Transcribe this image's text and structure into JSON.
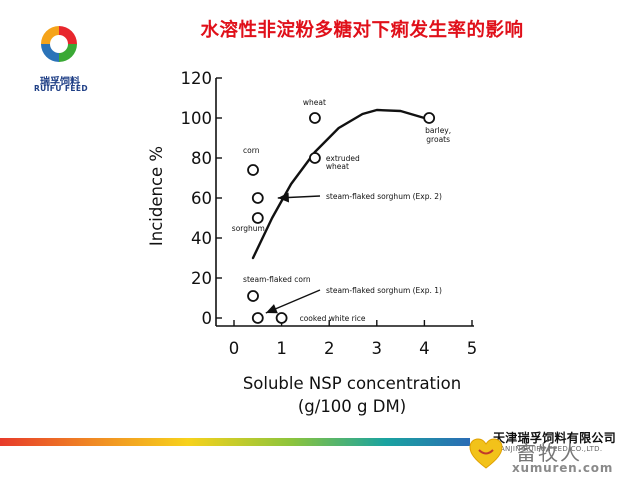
{
  "header": {
    "title": "水溶性非淀粉多糖对下痢发生率的影响",
    "brand_cn": "瑞孚饲料",
    "brand_en": "RUIFU FEED",
    "logo_colors": [
      "#e8262d",
      "#f5a31a",
      "#3aa935",
      "#2b73b8"
    ]
  },
  "chart_data": {
    "type": "scatter",
    "xlabel_line1": "Soluble NSP concentration",
    "xlabel_line2": "(g/100 g DM)",
    "ylabel": "Incidence %",
    "xlim": [
      0,
      5
    ],
    "ylim": [
      0,
      120
    ],
    "x_ticks": [
      0,
      1,
      2,
      3,
      4,
      5
    ],
    "y_ticks": [
      0,
      20,
      40,
      60,
      80,
      100,
      120
    ],
    "grid": false,
    "points": [
      {
        "x": 0.4,
        "y": 74,
        "label": "corn"
      },
      {
        "x": 0.5,
        "y": 60,
        "label": ""
      },
      {
        "x": 0.5,
        "y": 50,
        "label": "sorghum"
      },
      {
        "x": 0.4,
        "y": 11,
        "label": "steam-flaked corn"
      },
      {
        "x": 0.5,
        "y": 0,
        "label": ""
      },
      {
        "x": 1.0,
        "y": 0,
        "label": "cooked white rice"
      },
      {
        "x": 1.7,
        "y": 100,
        "label": "wheat"
      },
      {
        "x": 1.7,
        "y": 80,
        "label": "extruded"
      },
      {
        "x": 4.1,
        "y": 100,
        "label": "barley,"
      }
    ],
    "label_extra": {
      "extruded": "wheat",
      "barley": "groats"
    },
    "annotations": [
      {
        "text": "steam-flaked sorghum (Exp. 2)",
        "target": {
          "x": 0.5,
          "y": 60
        }
      },
      {
        "text": "steam-flaked sorghum (Exp. 1)",
        "target": {
          "x": 0.5,
          "y": 0
        }
      }
    ],
    "curve": [
      {
        "x": 0.4,
        "y": 30
      },
      {
        "x": 0.8,
        "y": 50
      },
      {
        "x": 1.2,
        "y": 67
      },
      {
        "x": 1.7,
        "y": 83
      },
      {
        "x": 2.2,
        "y": 95
      },
      {
        "x": 2.7,
        "y": 102
      },
      {
        "x": 3.0,
        "y": 104
      },
      {
        "x": 3.5,
        "y": 103.5
      },
      {
        "x": 4.0,
        "y": 100
      }
    ]
  },
  "footer": {
    "company": "天津瑞孚饲料有限公司",
    "company_en": "TIANJIN RUIFU FEED CO.,LTD.",
    "watermark_cn": "畜牧人",
    "watermark_url": "xumuren.com"
  }
}
